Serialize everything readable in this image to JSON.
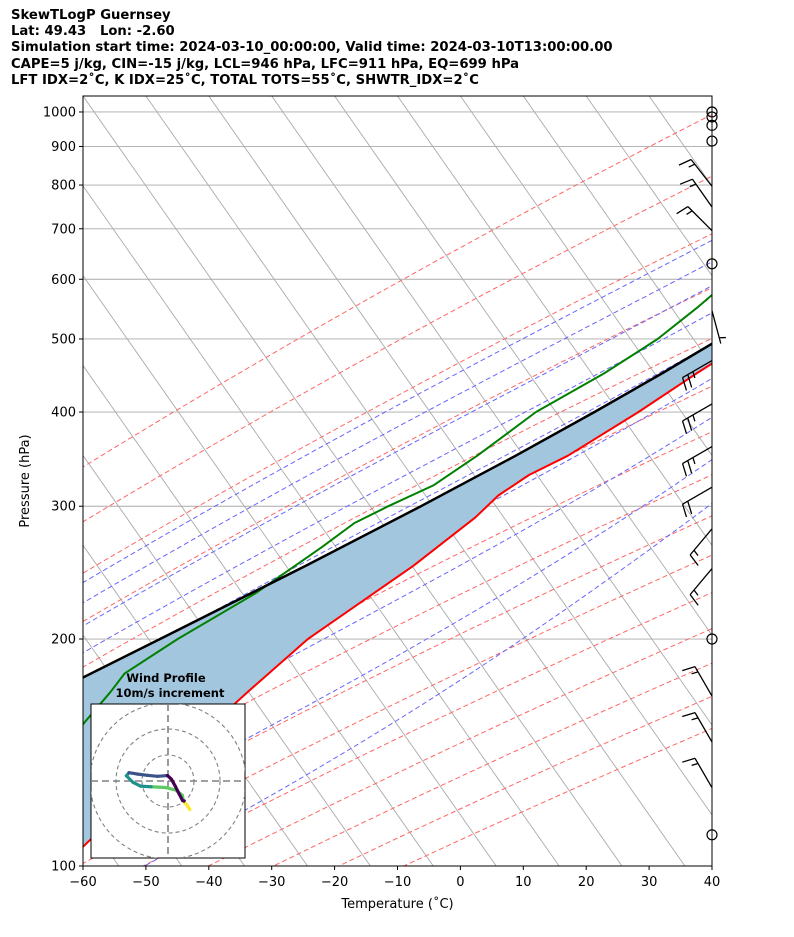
{
  "header": {
    "line1": "SkewTLogP Guernsey",
    "line2": "Lat: 49.43   Lon: -2.60",
    "line3": "Simulation start time: 2024-03-10_00:00:00, Valid time: 2024-03-10T13:00:00.00",
    "line4": "CAPE=5 j/kg, CIN=-15 j/kg, LCL=946 hPa, LFC=911 hPa, EQ=699 hPa",
    "line5": "LFT IDX=2˚C, K IDX=25˚C, TOTAL TOTS=55˚C, SHWTR_IDX=2˚C"
  },
  "colors": {
    "temperature": "#ff0000",
    "dewpoint": "#008000",
    "parcel": "#000000",
    "cape_fill": "#a3c6df",
    "dry_adiabat": "#ff6666",
    "moist_adiabat": "#6666ff",
    "isotherm": "#aaaaaa",
    "mixing_ratio": "#9932cc"
  },
  "chart_data": [
    {
      "type": "line",
      "subtype": "skew-t log-p",
      "xlabel": "Temperature (˚C)",
      "ylabel": "Pressure (hPa)",
      "xlim": [
        -60,
        40
      ],
      "ylim": [
        1050,
        100
      ],
      "yscale": "log",
      "x_ticks": [
        -60,
        -50,
        -40,
        -30,
        -20,
        -10,
        0,
        10,
        20,
        30,
        40
      ],
      "x_tick_labels": [
        "−60",
        "−50",
        "−40",
        "−30",
        "−20",
        "−10",
        "0",
        "10",
        "20",
        "30",
        "40"
      ],
      "y_ticks": [
        1000,
        900,
        800,
        700,
        600,
        500,
        400,
        300,
        200,
        100
      ],
      "grid": true,
      "series": [
        {
          "role": "temperature",
          "points": [
            [
              1000,
              10.5
            ],
            [
              985,
              8.6
            ],
            [
              950,
              7.5
            ],
            [
              900,
              5.5
            ],
            [
              850,
              3.6
            ],
            [
              800,
              1.7
            ],
            [
              750,
              0.4
            ],
            [
              700,
              -1.2
            ],
            [
              650,
              -2.3
            ],
            [
              600,
              -4.5
            ],
            [
              550,
              -8.3
            ],
            [
              500,
              -12.5
            ],
            [
              450,
              -17.3
            ],
            [
              400,
              -22.2
            ],
            [
              350,
              -28.6
            ],
            [
              330,
              -32.6
            ],
            [
              310,
              -35.2
            ],
            [
              290,
              -36.4
            ],
            [
              250,
              -40.9
            ],
            [
              200,
              -49.5
            ],
            [
              170,
              -53.2
            ],
            [
              150,
              -55.8
            ],
            [
              130,
              -58.3
            ],
            [
              110,
              -61.5
            ],
            [
              100,
              -63.2
            ]
          ]
        },
        {
          "role": "dewpoint",
          "points": [
            [
              990,
              7.5
            ],
            [
              970,
              6.8
            ],
            [
              950,
              5.5
            ],
            [
              900,
              4.8
            ],
            [
              800,
              1.3
            ],
            [
              700,
              -4.6
            ],
            [
              640,
              -10.0
            ],
            [
              600,
              -17.0
            ],
            [
              585,
              -23.0
            ],
            [
              550,
              -24.5
            ],
            [
              500,
              -27.3
            ],
            [
              450,
              -32.0
            ],
            [
              400,
              -38.5
            ],
            [
              350,
              -43.0
            ],
            [
              320,
              -46.6
            ],
            [
              300,
              -51.5
            ],
            [
              285,
              -55.0
            ],
            [
              265,
              -57.5
            ],
            [
              230,
              -62.9
            ],
            [
              200,
              -70.2
            ],
            [
              180,
              -74.8
            ],
            [
              170,
              -75.0
            ],
            [
              150,
              -76.0
            ],
            [
              100,
              -87.0
            ]
          ]
        },
        {
          "role": "parcel",
          "points": [
            [
              1000,
              10.1
            ],
            [
              970,
              8.0
            ],
            [
              950,
              7.7
            ],
            [
              900,
              5.7
            ],
            [
              850,
              3.7
            ],
            [
              800,
              1.6
            ],
            [
              750,
              -0.7
            ],
            [
              700,
              -3.0
            ],
            [
              650,
              -5.7
            ],
            [
              600,
              -9.0
            ],
            [
              550,
              -12.8
            ],
            [
              500,
              -17.4
            ],
            [
              450,
              -22.8
            ],
            [
              400,
              -29.2
            ],
            [
              350,
              -36.9
            ],
            [
              300,
              -46.3
            ],
            [
              250,
              -58.0
            ],
            [
              200,
              -73.0
            ],
            [
              150,
              -92.5
            ],
            [
              125,
              -104.5
            ],
            [
              100,
              -118.5
            ]
          ]
        }
      ],
      "isotherms_C": [
        -160,
        -150,
        -140,
        -130,
        -120,
        -110,
        -100,
        -90,
        -80,
        -70,
        -60,
        -50,
        -40,
        -30,
        -20,
        -10,
        0,
        10,
        20,
        30,
        40
      ],
      "dry_adiabats_K": [
        230,
        250,
        270,
        290,
        310,
        330,
        350,
        370,
        390,
        410,
        430,
        450,
        470,
        490,
        510
      ],
      "moist_adiabats_K": [
        270,
        275,
        280,
        285,
        290,
        295,
        300,
        305,
        310
      ],
      "mixing_ratio_lines_gkg": [
        1,
        2
      ],
      "wind_barbs": [
        {
          "p": 1000,
          "speed_kt": 0,
          "dir_deg": 0
        },
        {
          "p": 985,
          "speed_kt": 0,
          "dir_deg": 0
        },
        {
          "p": 960,
          "speed_kt": 0,
          "dir_deg": 0
        },
        {
          "p": 915,
          "speed_kt": 0,
          "dir_deg": 0
        },
        {
          "p": 797,
          "speed_kt": 15,
          "dir_deg": 322
        },
        {
          "p": 748,
          "speed_kt": 15,
          "dir_deg": 325
        },
        {
          "p": 696,
          "speed_kt": 15,
          "dir_deg": 315
        },
        {
          "p": 629,
          "speed_kt": 0,
          "dir_deg": 0
        },
        {
          "p": 545,
          "speed_kt": 5,
          "dir_deg": 165
        },
        {
          "p": 468,
          "speed_kt": 25,
          "dir_deg": 240
        },
        {
          "p": 410,
          "speed_kt": 25,
          "dir_deg": 240
        },
        {
          "p": 360,
          "speed_kt": 25,
          "dir_deg": 240
        },
        {
          "p": 318,
          "speed_kt": 20,
          "dir_deg": 240
        },
        {
          "p": 280,
          "speed_kt": 15,
          "dir_deg": 220
        },
        {
          "p": 248,
          "speed_kt": 15,
          "dir_deg": 220
        },
        {
          "p": 200,
          "speed_kt": 0,
          "dir_deg": 0
        },
        {
          "p": 168,
          "speed_kt": 15,
          "dir_deg": 330
        },
        {
          "p": 146,
          "speed_kt": 15,
          "dir_deg": 330
        },
        {
          "p": 127,
          "speed_kt": 15,
          "dir_deg": 330
        },
        {
          "p": 110,
          "speed_kt": 0,
          "dir_deg": 0
        }
      ]
    },
    {
      "type": "line",
      "subtype": "hodograph",
      "title": "Wind Profile",
      "subtitle": "10m/s increment",
      "rings_ms": [
        10,
        20,
        30
      ],
      "trace_uv_ms": [
        [
          8.4,
          -11.0
        ],
        [
          8.0,
          -10.4
        ],
        [
          7.5,
          -9.5
        ],
        [
          6.6,
          -8.5
        ],
        [
          6.0,
          -7.8
        ],
        [
          5.5,
          -5.5
        ],
        [
          3.0,
          -3.5
        ],
        [
          -1.0,
          -2.5
        ],
        [
          -6.5,
          -2.2
        ],
        [
          -10.5,
          -2.0
        ],
        [
          -13.5,
          -0.5
        ],
        [
          -16.0,
          2.0
        ],
        [
          -15.0,
          3.2
        ],
        [
          -12.0,
          2.7
        ],
        [
          -8.0,
          2.2
        ],
        [
          -4.0,
          1.8
        ],
        [
          -0.2,
          2.1
        ],
        [
          1.3,
          0.7
        ],
        [
          2.8,
          -2.0
        ],
        [
          4.2,
          -4.8
        ],
        [
          5.6,
          -7.5
        ],
        [
          6.2,
          -7.7
        ]
      ],
      "colormap": [
        "#440154",
        "#3b528b",
        "#21918c",
        "#5ec962",
        "#fde725"
      ]
    }
  ]
}
